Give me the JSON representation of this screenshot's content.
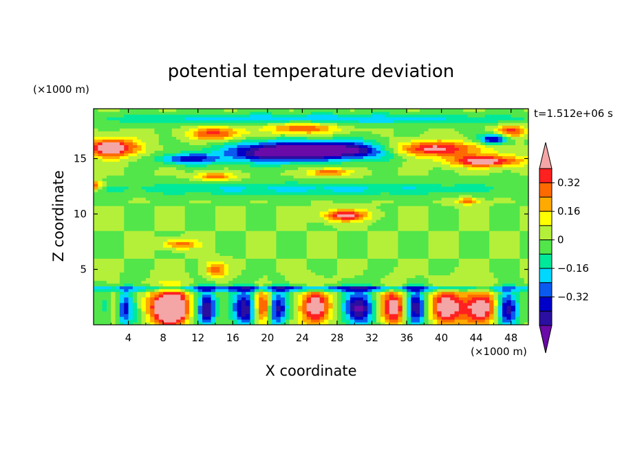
{
  "chart_data": {
    "type": "heatmap",
    "title": "potential temperature deviation",
    "xlabel": "X coordinate",
    "ylabel": "Z coordinate",
    "x_unit": "(×1000 m)",
    "y_unit": "(×1000 m)",
    "time_label": "t=1.512e+06 s",
    "xlim": [
      0,
      50
    ],
    "ylim": [
      0,
      19.5
    ],
    "x_ticks": [
      4,
      8,
      12,
      16,
      20,
      24,
      28,
      32,
      36,
      40,
      44,
      48
    ],
    "y_ticks": [
      5,
      10,
      15
    ],
    "x_tick_labels": [
      "4",
      "8",
      "12",
      "16",
      "20",
      "24",
      "28",
      "32",
      "36",
      "40",
      "44",
      "48"
    ],
    "y_tick_labels": [
      "5",
      "10",
      "15"
    ],
    "colorbar": {
      "levels": [
        -0.48,
        -0.4,
        -0.32,
        -0.24,
        -0.16,
        -0.08,
        0,
        0.08,
        0.16,
        0.24,
        0.32,
        0.4
      ],
      "tick_values": [
        0.32,
        0.16,
        0,
        -0.16,
        -0.32
      ],
      "tick_labels": [
        "0.32",
        "0.16",
        "0",
        "−0.16",
        "−0.32"
      ],
      "colors": [
        "#6a0aa8",
        "#2a0fa0",
        "#0000c8",
        "#0a5af0",
        "#00d8ff",
        "#00e89a",
        "#52e64a",
        "#b4f03a",
        "#ffff00",
        "#ffaa00",
        "#ff6a00",
        "#ff2020",
        "#f4a6a6"
      ],
      "extend": "both"
    },
    "field_description_bands": [
      {
        "z_range": [
          0,
          3.5
        ],
        "pattern": "strong vertical plumes alternating red and purple"
      },
      {
        "z_range": [
          3.5,
          13
        ],
        "pattern": "mostly near-zero green with scattered pink/red cells"
      },
      {
        "z_range": [
          13,
          19.5
        ],
        "pattern": "strong horizontal layers: purple/blue trough with pink/orange above and below"
      }
    ]
  }
}
